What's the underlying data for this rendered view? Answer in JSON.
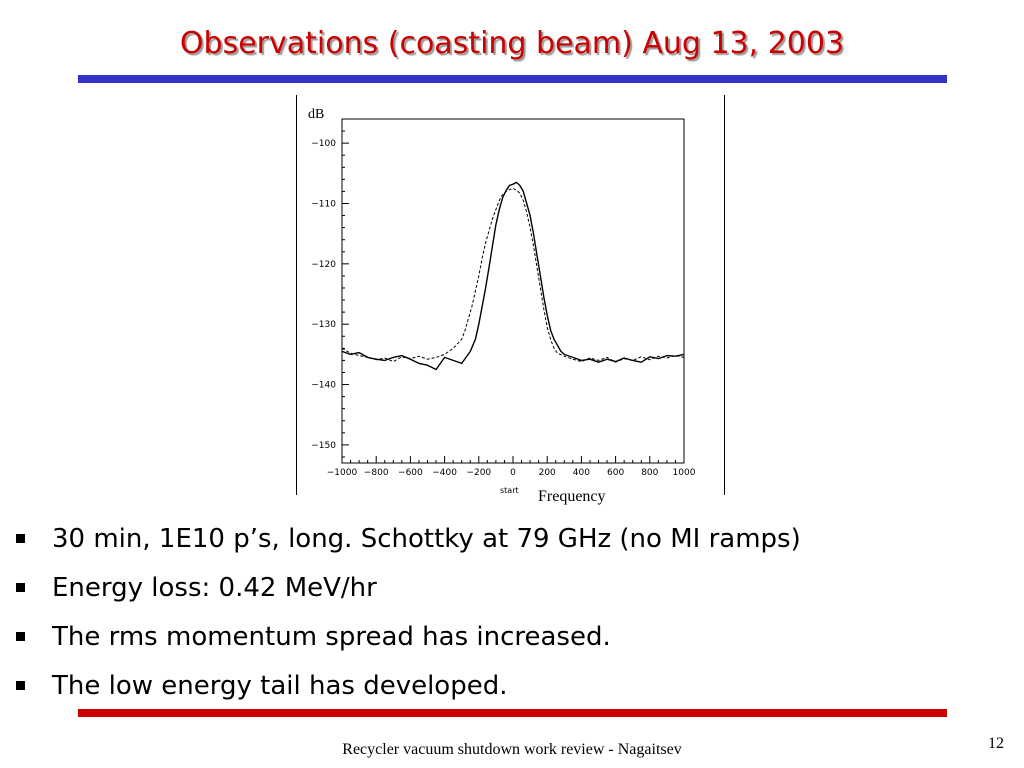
{
  "slide": {
    "title": "Observations (coasting beam) Aug 13, 2003",
    "bullets": [
      "30 min, 1E10 p’s, long. Schottky at 79 GHz (no MI ramps)",
      "Energy loss: 0.42 MeV/hr",
      "The rms momentum spread has increased.",
      "The low energy tail has developed."
    ],
    "footer": "Recycler vacuum shutdown work review - Nagaitsev",
    "page_number": "12",
    "colors": {
      "title": "#cc0000",
      "top_rule": "#3333cc",
      "bottom_rule": "#cc0000"
    }
  },
  "chart_data": {
    "type": "line",
    "ylabel": "dB",
    "xlabel": "Frequency",
    "x_sublabel": "start",
    "xlim": [
      -1000,
      1000
    ],
    "ylim": [
      -153,
      -96
    ],
    "xticks": [
      -1000,
      -800,
      -600,
      -400,
      -200,
      0,
      200,
      400,
      600,
      800,
      1000
    ],
    "yticks": [
      -150,
      -140,
      -130,
      -120,
      -110,
      -100
    ],
    "grid": false,
    "series": [
      {
        "style": "solid",
        "x": [
          -1000,
          -950,
          -900,
          -850,
          -800,
          -750,
          -700,
          -650,
          -600,
          -550,
          -500,
          -450,
          -400,
          -350,
          -300,
          -250,
          -220,
          -200,
          -180,
          -160,
          -140,
          -120,
          -100,
          -80,
          -60,
          -40,
          -20,
          0,
          20,
          40,
          60,
          80,
          100,
          120,
          140,
          160,
          180,
          200,
          220,
          240,
          260,
          280,
          300,
          350,
          400,
          450,
          500,
          550,
          600,
          650,
          700,
          750,
          800,
          850,
          900,
          950,
          1000
        ],
        "y": [
          -134.5,
          -135,
          -134.7,
          -135.5,
          -135.8,
          -136,
          -135.5,
          -135.2,
          -135.8,
          -136.5,
          -136.8,
          -137.5,
          -135.5,
          -136,
          -136.5,
          -134.5,
          -132.5,
          -130,
          -127,
          -124,
          -120.5,
          -117,
          -113.5,
          -111,
          -109,
          -107.8,
          -107,
          -106.8,
          -106.5,
          -107,
          -108,
          -110,
          -112,
          -115,
          -118.5,
          -122,
          -125.5,
          -128.5,
          -131,
          -132.5,
          -133.5,
          -134.5,
          -135,
          -135.5,
          -136,
          -135.8,
          -136.3,
          -135.8,
          -136.2,
          -135.6,
          -136,
          -136.3,
          -135.4,
          -135.7,
          -135.2,
          -135.3,
          -135
        ]
      },
      {
        "style": "dashed",
        "x": [
          -1000,
          -950,
          -900,
          -850,
          -800,
          -750,
          -700,
          -650,
          -600,
          -550,
          -500,
          -450,
          -400,
          -350,
          -300,
          -280,
          -260,
          -240,
          -220,
          -200,
          -180,
          -160,
          -140,
          -120,
          -100,
          -80,
          -60,
          -40,
          -20,
          0,
          20,
          40,
          60,
          80,
          100,
          120,
          140,
          160,
          180,
          200,
          220,
          240,
          260,
          300,
          350,
          400,
          450,
          500,
          550,
          600,
          650,
          700,
          750,
          800,
          850,
          900,
          950,
          1000
        ],
        "y": [
          -134,
          -134.8,
          -135.2,
          -135.5,
          -135.9,
          -135.6,
          -136.2,
          -135.4,
          -135.7,
          -135.3,
          -135.8,
          -135.5,
          -135,
          -134,
          -132.5,
          -131,
          -129,
          -127,
          -124.5,
          -122,
          -119,
          -116.5,
          -114.5,
          -112.5,
          -111,
          -109.5,
          -108.5,
          -108,
          -107.7,
          -107.5,
          -107.8,
          -108.3,
          -109.5,
          -111.5,
          -114,
          -117,
          -120.5,
          -124,
          -127.5,
          -130.5,
          -132.5,
          -134,
          -134.8,
          -135.3,
          -135.8,
          -136.2,
          -135.6,
          -136,
          -135.5,
          -136.3,
          -135.7,
          -136,
          -135.4,
          -135.9,
          -135.3,
          -135.6,
          -135.2,
          -135.5
        ]
      }
    ]
  }
}
